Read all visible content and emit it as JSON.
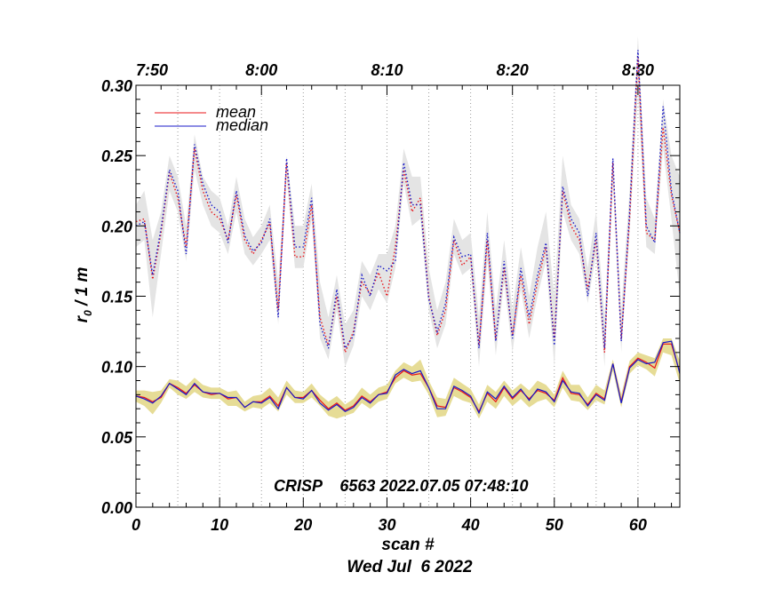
{
  "chart_data": {
    "type": "line",
    "xlabel": "scan #",
    "ylabel_main": "r",
    "ylabel_sub": "0",
    "ylabel_rest": " / 1 m",
    "date_label": "Wed Jul  6 2022",
    "annotation": "CRISP    6563 2022.07.05 07:48:10",
    "xlim": [
      0,
      65
    ],
    "ylim": [
      0,
      0.3
    ],
    "x_ticks": [
      0,
      10,
      20,
      30,
      40,
      50,
      60
    ],
    "x_tick_labels": [
      "0",
      "10",
      "20",
      "30",
      "40",
      "50",
      "60"
    ],
    "y_ticks": [
      0.0,
      0.05,
      0.1,
      0.15,
      0.2,
      0.25,
      0.3
    ],
    "y_tick_labels": [
      "0.00",
      "0.05",
      "0.10",
      "0.15",
      "0.20",
      "0.25",
      "0.30"
    ],
    "top_time_ticks": [
      0,
      15,
      30,
      45,
      60
    ],
    "top_time_labels": [
      "7:50",
      "8:00",
      "8:10",
      "8:20",
      "8:30"
    ],
    "grid_x": [
      5,
      10,
      15,
      20,
      25,
      30,
      35,
      40,
      45,
      50,
      55,
      60
    ],
    "legend": [
      "mean",
      "median"
    ],
    "colors": {
      "mean": "#e8141a",
      "median": "#1818c8",
      "upper_band": "#e4e4e4",
      "lower_band": "#e6dc96",
      "grid": "#9a9a9a"
    },
    "x": [
      0,
      1,
      2,
      3,
      4,
      5,
      6,
      7,
      8,
      9,
      10,
      11,
      12,
      13,
      14,
      15,
      16,
      17,
      18,
      19,
      20,
      21,
      22,
      23,
      24,
      25,
      26,
      27,
      28,
      29,
      30,
      31,
      32,
      33,
      34,
      35,
      36,
      37,
      38,
      39,
      40,
      41,
      42,
      43,
      44,
      45,
      46,
      47,
      48,
      49,
      50,
      51,
      52,
      53,
      54,
      55,
      56,
      57,
      58,
      59,
      60,
      61,
      62,
      63,
      64,
      65
    ],
    "series": [
      {
        "name": "upper mean",
        "style": "dotted",
        "values": [
          0.203,
          0.205,
          0.162,
          0.195,
          0.238,
          0.22,
          0.185,
          0.255,
          0.225,
          0.21,
          0.205,
          0.19,
          0.222,
          0.19,
          0.18,
          0.19,
          0.202,
          0.14,
          0.245,
          0.178,
          0.178,
          0.215,
          0.135,
          0.115,
          0.15,
          0.11,
          0.125,
          0.16,
          0.152,
          0.167,
          0.15,
          0.185,
          0.24,
          0.21,
          0.22,
          0.15,
          0.122,
          0.14,
          0.19,
          0.172,
          0.178,
          0.115,
          0.19,
          0.12,
          0.17,
          0.122,
          0.165,
          0.13,
          0.16,
          0.185,
          0.12,
          0.225,
          0.2,
          0.19,
          0.155,
          0.19,
          0.11,
          0.245,
          0.12,
          0.205,
          0.32,
          0.195,
          0.19,
          0.27,
          0.222,
          0.195
        ]
      },
      {
        "name": "upper median",
        "style": "dotted",
        "values": [
          0.2,
          0.203,
          0.165,
          0.198,
          0.24,
          0.225,
          0.18,
          0.258,
          0.23,
          0.215,
          0.21,
          0.188,
          0.225,
          0.193,
          0.182,
          0.188,
          0.205,
          0.135,
          0.248,
          0.185,
          0.185,
          0.22,
          0.13,
          0.113,
          0.155,
          0.113,
          0.122,
          0.165,
          0.15,
          0.172,
          0.168,
          0.175,
          0.245,
          0.215,
          0.215,
          0.148,
          0.125,
          0.145,
          0.192,
          0.178,
          0.18,
          0.113,
          0.195,
          0.118,
          0.175,
          0.12,
          0.17,
          0.135,
          0.165,
          0.188,
          0.115,
          0.228,
          0.205,
          0.195,
          0.15,
          0.195,
          0.113,
          0.248,
          0.118,
          0.21,
          0.325,
          0.2,
          0.188,
          0.285,
          0.225,
          0.195
        ]
      },
      {
        "name": "upper band low",
        "style": "band",
        "values": [
          0.185,
          0.19,
          0.135,
          0.18,
          0.225,
          0.21,
          0.175,
          0.24,
          0.215,
          0.2,
          0.195,
          0.18,
          0.21,
          0.18,
          0.172,
          0.18,
          0.19,
          0.13,
          0.235,
          0.17,
          0.17,
          0.205,
          0.12,
          0.105,
          0.14,
          0.1,
          0.115,
          0.15,
          0.14,
          0.155,
          0.145,
          0.17,
          0.23,
          0.2,
          0.205,
          0.14,
          0.113,
          0.13,
          0.18,
          0.165,
          0.17,
          0.1,
          0.175,
          0.108,
          0.16,
          0.11,
          0.155,
          0.12,
          0.15,
          0.175,
          0.1,
          0.21,
          0.19,
          0.18,
          0.145,
          0.18,
          0.1,
          0.23,
          0.11,
          0.195,
          0.295,
          0.185,
          0.18,
          0.255,
          0.205,
          0.15
        ]
      },
      {
        "name": "upper band high",
        "style": "band",
        "values": [
          0.215,
          0.225,
          0.19,
          0.21,
          0.25,
          0.235,
          0.2,
          0.265,
          0.235,
          0.225,
          0.22,
          0.2,
          0.235,
          0.205,
          0.192,
          0.2,
          0.215,
          0.16,
          0.25,
          0.2,
          0.2,
          0.23,
          0.16,
          0.135,
          0.165,
          0.13,
          0.14,
          0.175,
          0.165,
          0.18,
          0.18,
          0.2,
          0.255,
          0.235,
          0.235,
          0.17,
          0.14,
          0.16,
          0.205,
          0.19,
          0.195,
          0.135,
          0.21,
          0.14,
          0.19,
          0.14,
          0.185,
          0.15,
          0.185,
          0.21,
          0.15,
          0.25,
          0.215,
          0.205,
          0.17,
          0.21,
          0.135,
          0.25,
          0.14,
          0.225,
          0.335,
          0.22,
          0.205,
          0.29,
          0.25,
          0.235
        ]
      },
      {
        "name": "lower mean",
        "style": "solid",
        "values": [
          0.079,
          0.078,
          0.075,
          0.078,
          0.088,
          0.085,
          0.081,
          0.087,
          0.082,
          0.08,
          0.081,
          0.077,
          0.078,
          0.071,
          0.075,
          0.075,
          0.079,
          0.072,
          0.085,
          0.078,
          0.078,
          0.083,
          0.076,
          0.07,
          0.074,
          0.069,
          0.072,
          0.079,
          0.075,
          0.08,
          0.082,
          0.092,
          0.097,
          0.094,
          0.095,
          0.085,
          0.072,
          0.071,
          0.085,
          0.082,
          0.078,
          0.068,
          0.081,
          0.075,
          0.085,
          0.077,
          0.083,
          0.077,
          0.083,
          0.081,
          0.076,
          0.092,
          0.081,
          0.08,
          0.073,
          0.081,
          0.077,
          0.102,
          0.075,
          0.1,
          0.106,
          0.103,
          0.099,
          0.116,
          0.116,
          0.096
        ]
      },
      {
        "name": "lower median",
        "style": "solid",
        "values": [
          0.079,
          0.077,
          0.074,
          0.079,
          0.088,
          0.084,
          0.08,
          0.088,
          0.082,
          0.081,
          0.081,
          0.078,
          0.078,
          0.071,
          0.075,
          0.074,
          0.078,
          0.07,
          0.085,
          0.078,
          0.077,
          0.083,
          0.074,
          0.069,
          0.073,
          0.068,
          0.071,
          0.078,
          0.074,
          0.08,
          0.081,
          0.094,
          0.098,
          0.095,
          0.097,
          0.085,
          0.07,
          0.07,
          0.086,
          0.083,
          0.079,
          0.067,
          0.082,
          0.077,
          0.086,
          0.078,
          0.084,
          0.076,
          0.084,
          0.082,
          0.075,
          0.09,
          0.082,
          0.081,
          0.072,
          0.08,
          0.076,
          0.102,
          0.074,
          0.099,
          0.105,
          0.102,
          0.103,
          0.117,
          0.118,
          0.095
        ]
      },
      {
        "name": "lower band low",
        "style": "band",
        "values": [
          0.075,
          0.072,
          0.066,
          0.074,
          0.085,
          0.08,
          0.077,
          0.082,
          0.078,
          0.077,
          0.077,
          0.072,
          0.072,
          0.068,
          0.071,
          0.07,
          0.074,
          0.068,
          0.08,
          0.074,
          0.074,
          0.078,
          0.072,
          0.065,
          0.063,
          0.065,
          0.067,
          0.074,
          0.07,
          0.075,
          0.077,
          0.088,
          0.092,
          0.089,
          0.09,
          0.08,
          0.064,
          0.065,
          0.079,
          0.076,
          0.074,
          0.063,
          0.075,
          0.07,
          0.079,
          0.072,
          0.077,
          0.071,
          0.075,
          0.077,
          0.071,
          0.085,
          0.076,
          0.075,
          0.069,
          0.076,
          0.073,
          0.097,
          0.071,
          0.095,
          0.101,
          0.098,
          0.093,
          0.11,
          0.108,
          0.088
        ]
      },
      {
        "name": "lower band high",
        "style": "band",
        "values": [
          0.083,
          0.083,
          0.082,
          0.083,
          0.091,
          0.09,
          0.086,
          0.092,
          0.087,
          0.085,
          0.085,
          0.082,
          0.083,
          0.075,
          0.079,
          0.08,
          0.085,
          0.078,
          0.09,
          0.083,
          0.082,
          0.088,
          0.08,
          0.075,
          0.079,
          0.073,
          0.077,
          0.085,
          0.08,
          0.085,
          0.087,
          0.097,
          0.103,
          0.1,
          0.105,
          0.09,
          0.078,
          0.077,
          0.092,
          0.088,
          0.084,
          0.073,
          0.087,
          0.082,
          0.09,
          0.083,
          0.088,
          0.083,
          0.09,
          0.087,
          0.08,
          0.097,
          0.087,
          0.087,
          0.078,
          0.087,
          0.083,
          0.105,
          0.08,
          0.104,
          0.11,
          0.108,
          0.106,
          0.12,
          0.12,
          0.104
        ]
      }
    ]
  }
}
